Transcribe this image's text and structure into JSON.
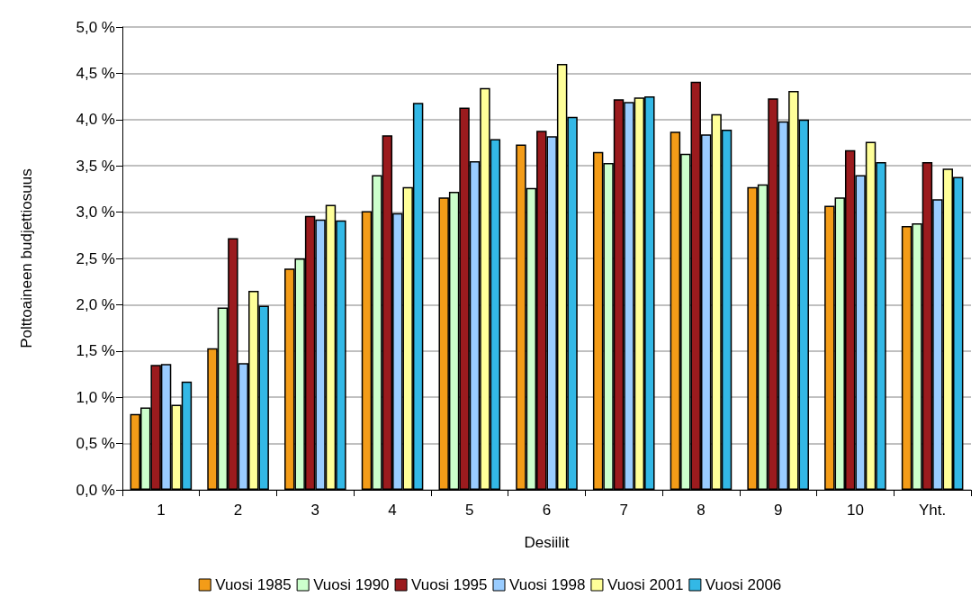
{
  "chart_data": {
    "type": "bar",
    "xlabel": "Desiilit",
    "ylabel": "Polttoaineen budjettiosuus",
    "categories": [
      "1",
      "2",
      "3",
      "4",
      "5",
      "6",
      "7",
      "8",
      "9",
      "10",
      "Yht."
    ],
    "series": [
      {
        "name": "Vuosi 1985",
        "color": "#f39c18",
        "values": [
          0.82,
          1.53,
          2.39,
          3.01,
          3.16,
          3.73,
          3.65,
          3.87,
          3.27,
          3.07,
          2.85
        ]
      },
      {
        "name": "Vuosi 1990",
        "color": "#ccffcc",
        "values": [
          0.89,
          1.97,
          2.5,
          3.4,
          3.22,
          3.26,
          3.53,
          3.63,
          3.3,
          3.16,
          2.88
        ]
      },
      {
        "name": "Vuosi 1995",
        "color": "#9b1b1e",
        "values": [
          1.35,
          2.72,
          2.96,
          3.83,
          4.13,
          3.88,
          4.22,
          4.41,
          4.23,
          3.67,
          3.54
        ]
      },
      {
        "name": "Vuosi 1998",
        "color": "#99ccff",
        "values": [
          1.36,
          1.37,
          2.92,
          2.99,
          3.55,
          3.82,
          4.19,
          3.84,
          3.98,
          3.4,
          3.14
        ]
      },
      {
        "name": "Vuosi 2001",
        "color": "#ffff99",
        "values": [
          0.92,
          2.15,
          3.08,
          3.27,
          4.34,
          4.6,
          4.24,
          4.06,
          4.31,
          3.76,
          3.47
        ]
      },
      {
        "name": "Vuosi 2006",
        "color": "#33b8e6",
        "values": [
          1.17,
          1.99,
          2.91,
          4.18,
          3.79,
          4.03,
          4.25,
          3.89,
          4.0,
          3.54,
          3.38
        ]
      }
    ],
    "ylim": [
      0,
      5
    ],
    "yticks": [
      {
        "value": 0,
        "label": "0,0 %"
      },
      {
        "value": 0.5,
        "label": "0,5 %"
      },
      {
        "value": 1,
        "label": "1,0 %"
      },
      {
        "value": 1.5,
        "label": "1,5 %"
      },
      {
        "value": 2,
        "label": "2,0 %"
      },
      {
        "value": 2.5,
        "label": "2,5 %"
      },
      {
        "value": 3,
        "label": "3,0 %"
      },
      {
        "value": 3.5,
        "label": "3,5 %"
      },
      {
        "value": 4,
        "label": "4,0 %"
      },
      {
        "value": 4.5,
        "label": "4,5 %"
      },
      {
        "value": 5,
        "label": "5,0 %"
      }
    ],
    "grid": "y",
    "legend": "bottom"
  }
}
